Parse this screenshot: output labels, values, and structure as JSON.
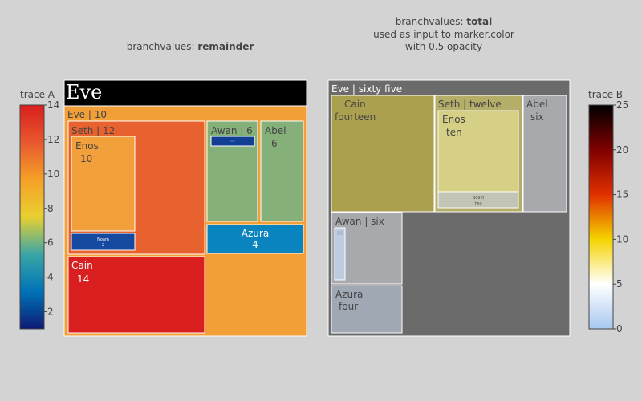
{
  "chart_data": [
    {
      "type": "treemap",
      "title_prefix": "branchvalues: ",
      "title_bold": "remainder",
      "colorbar": {
        "title": "trace A",
        "range": [
          1,
          14
        ],
        "ticks": [
          "2",
          "4",
          "6",
          "8",
          "10",
          "12",
          "14"
        ],
        "tick_values": [
          2,
          4,
          6,
          8,
          10,
          12,
          14
        ],
        "colorscale": [
          "#0d1a73",
          "#0073b8",
          "#3aa6a6",
          "#e8d030",
          "#f5a028",
          "#e8582e",
          "#d91e1e"
        ]
      },
      "nodes": [
        {
          "id": "root",
          "label": "Eve",
          "color": "#000000",
          "text_color": "#ffffff",
          "serif": true
        },
        {
          "id": "eve",
          "label": "Eve",
          "value": "10",
          "color": "#f29f38"
        },
        {
          "id": "seth",
          "label": "Seth",
          "value": "12",
          "color": "#e8622f"
        },
        {
          "id": "enos",
          "label": "Enos",
          "value": "10",
          "color": "#f2a03c"
        },
        {
          "id": "noam",
          "label": "Noam",
          "value": "2",
          "color": "#154aa0",
          "text_color": "#ffffff"
        },
        {
          "id": "awan",
          "label": "Awan",
          "value": "6",
          "color": "#86b07a"
        },
        {
          "id": "enoch",
          "label": "",
          "value": "",
          "color": "#123f93"
        },
        {
          "id": "abel",
          "label": "Abel",
          "value": "6",
          "color": "#86b07a"
        },
        {
          "id": "azura",
          "label": "Azura",
          "value": "4",
          "color": "#0a84bf",
          "text_color": "#ffffff"
        },
        {
          "id": "cain",
          "label": "Cain",
          "value": "14",
          "color": "#d91f1f",
          "text_color": "#ffffff"
        }
      ]
    },
    {
      "type": "treemap",
      "title_line1_prefix": "branchvalues: ",
      "title_line1_bold": "total",
      "title_line2": "used as input to marker.color",
      "title_line3": "with 0.5 opacity",
      "colorbar": {
        "title": "trace B",
        "range": [
          0,
          25
        ],
        "ticks": [
          "0",
          "5",
          "10",
          "15",
          "20",
          "25"
        ],
        "tick_values": [
          0,
          5,
          10,
          15,
          20,
          25
        ],
        "colorscale": [
          "#a8c8f0",
          "#ffffff",
          "#f5d400",
          "#e03000",
          "#800000",
          "#000000"
        ]
      },
      "nodes": [
        {
          "id": "eve",
          "label": "Eve",
          "value": "sixty five",
          "color": "#6b6b6b",
          "text_color": "#ffffff"
        },
        {
          "id": "cain",
          "label": "Cain",
          "value": "fourteen",
          "color": "#aba04f"
        },
        {
          "id": "seth",
          "label": "Seth",
          "value": "twelve",
          "color": "#b5ae68"
        },
        {
          "id": "enos",
          "label": "Enos",
          "value": "ten",
          "color": "#d5d086"
        },
        {
          "id": "noam",
          "label": "Noam",
          "value": "two",
          "color": "#c2c4b6"
        },
        {
          "id": "abel",
          "label": "Abel",
          "value": "six",
          "color": "#a7a9ad"
        },
        {
          "id": "awan",
          "label": "Awan",
          "value": "six",
          "color": "#a7a9ad"
        },
        {
          "id": "enoch",
          "label": "",
          "value": "",
          "color": "#bdcce0"
        },
        {
          "id": "azura",
          "label": "Azura",
          "value": "four",
          "color": "#a0a8b4"
        }
      ]
    }
  ]
}
